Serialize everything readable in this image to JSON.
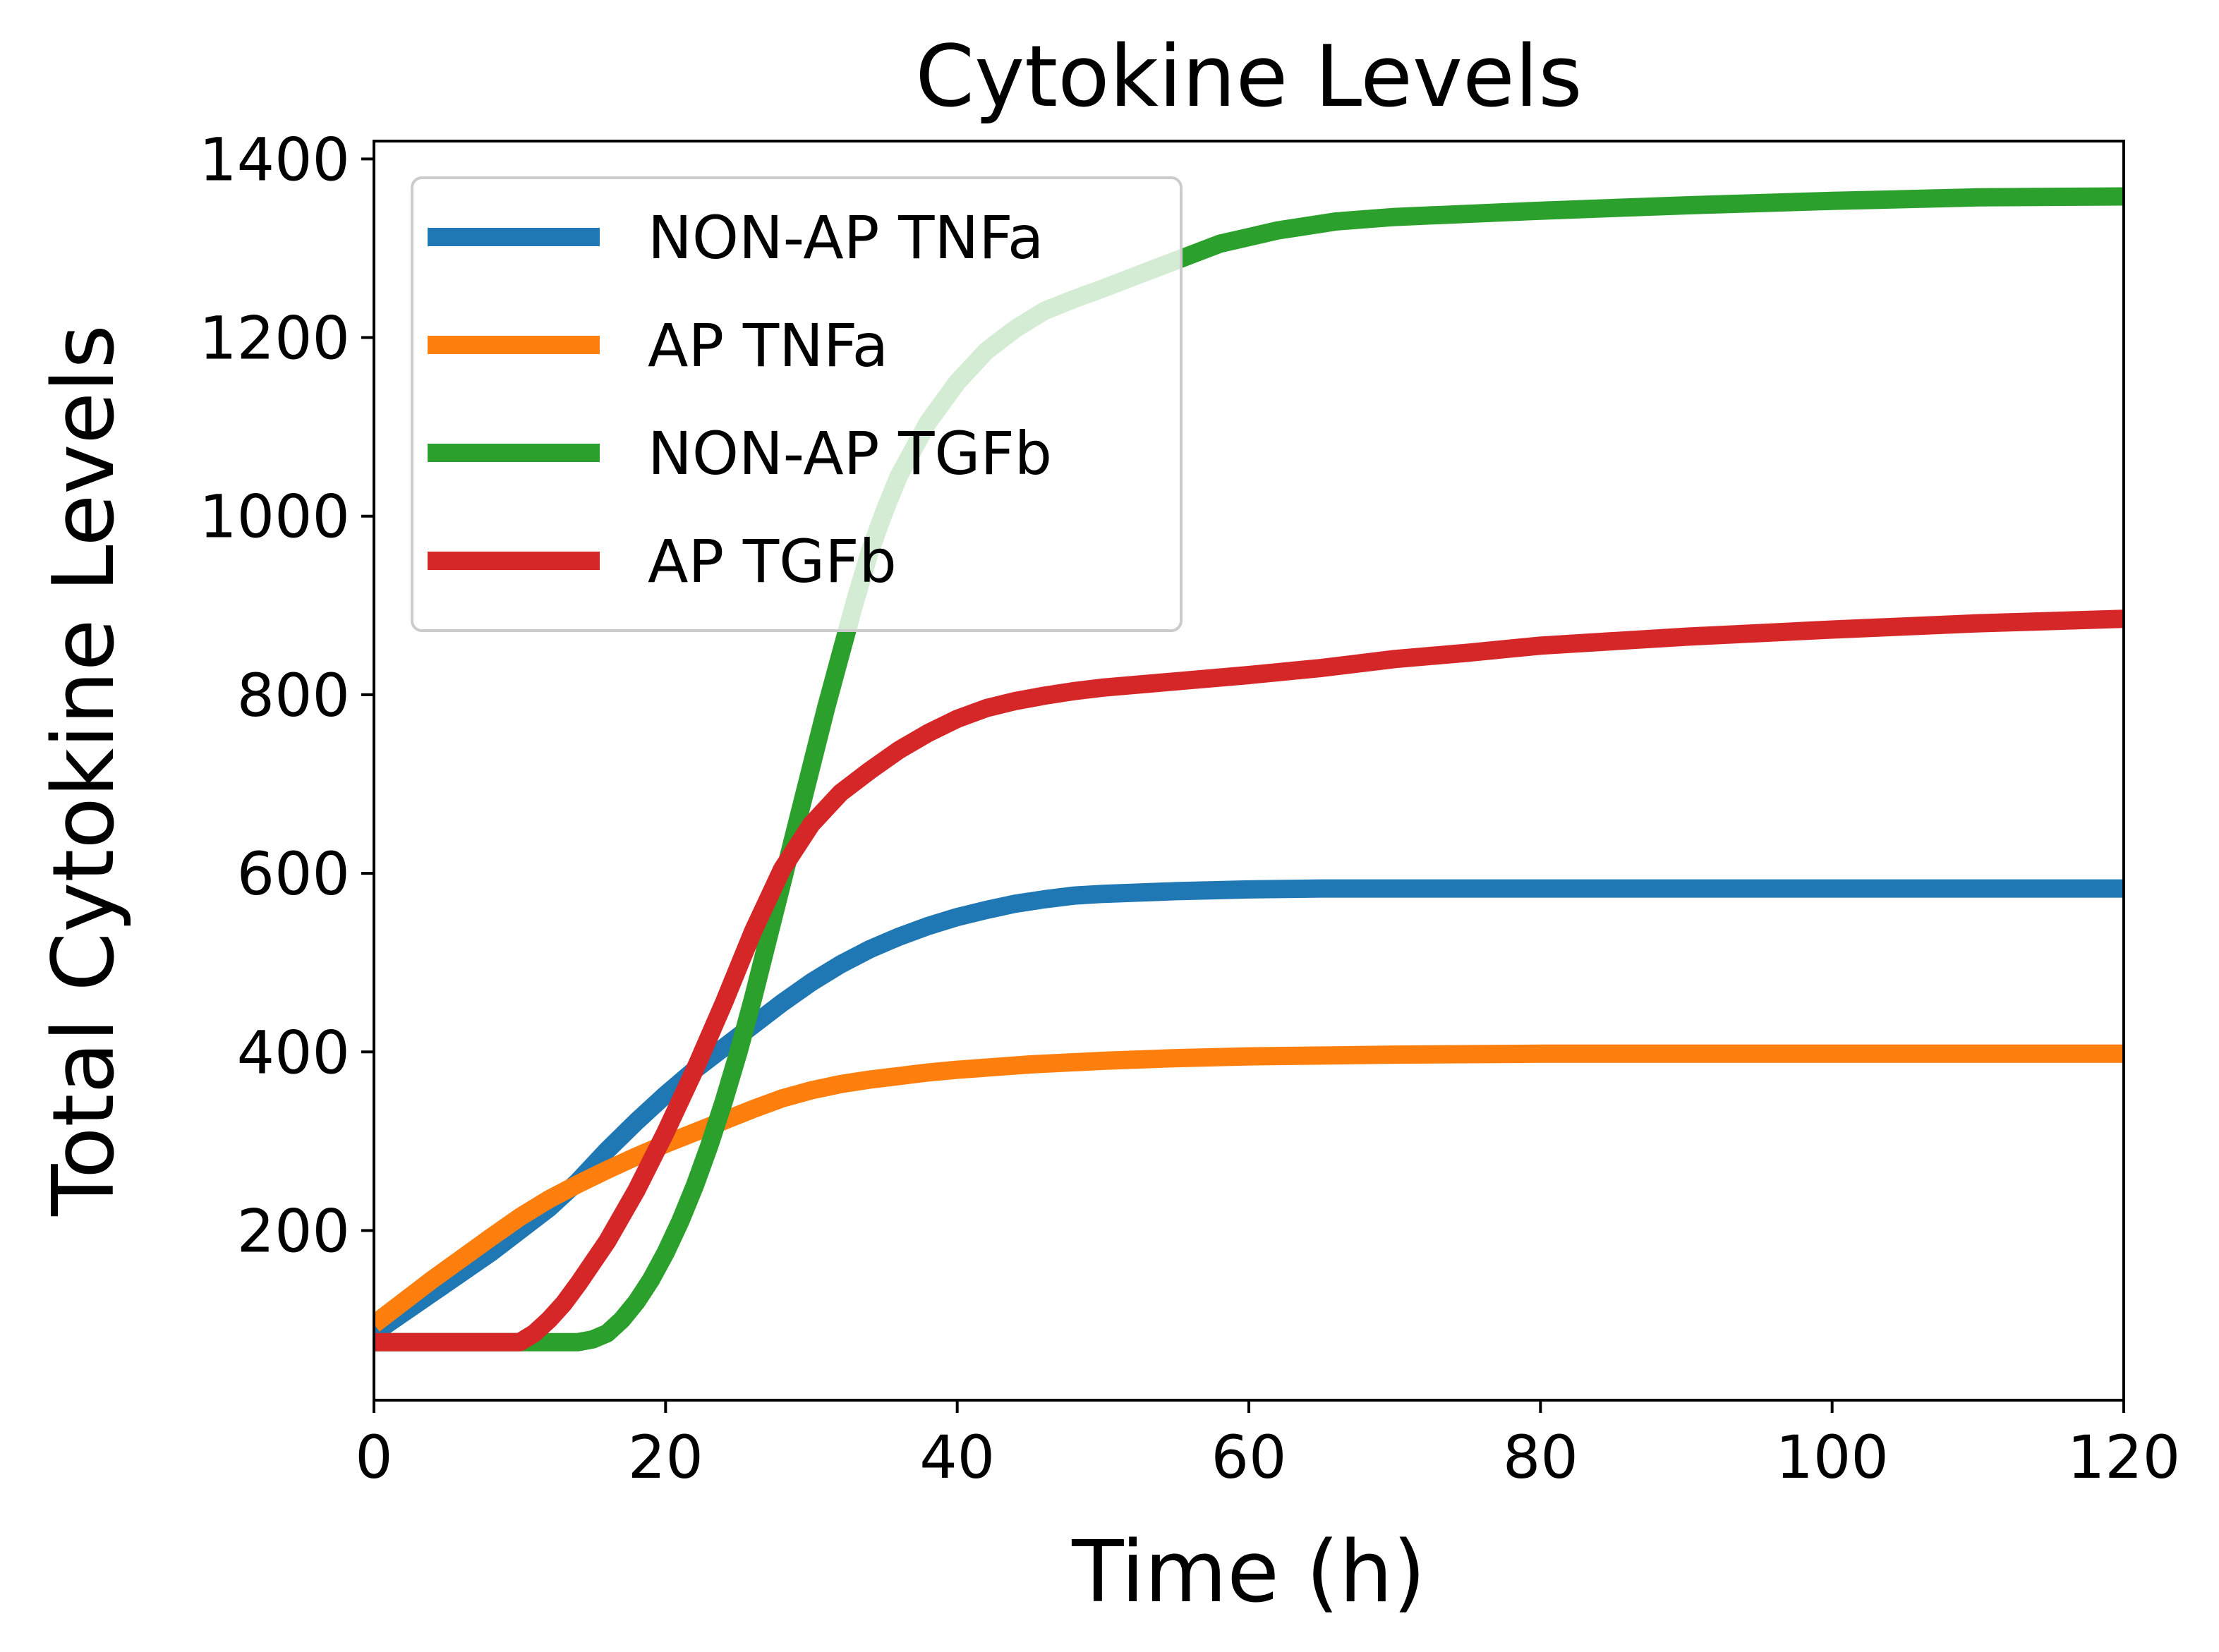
{
  "chart_data": {
    "type": "line",
    "title": "Cytokine Levels",
    "xlabel": "Time (h)",
    "ylabel": "Total Cytokine Levels",
    "xlim": [
      0,
      120
    ],
    "ylim": [
      10,
      1420
    ],
    "xticks": [
      0,
      20,
      40,
      60,
      80,
      100,
      120
    ],
    "yticks": [
      200,
      400,
      600,
      800,
      1000,
      1200,
      1400
    ],
    "grid": false,
    "legend_position": "upper left",
    "series": [
      {
        "name": "NON-AP TNFa",
        "color": "#1f77b4",
        "x": [
          0,
          4,
          8,
          12,
          14,
          16,
          18,
          20,
          22,
          24,
          26,
          28,
          30,
          32,
          34,
          36,
          38,
          40,
          42,
          44,
          46,
          48,
          50,
          55,
          60,
          65,
          70,
          80,
          90,
          100,
          110,
          120
        ],
        "y": [
          85,
          130,
          175,
          225,
          255,
          290,
          322,
          352,
          380,
          405,
          430,
          455,
          478,
          498,
          515,
          529,
          541,
          551,
          559,
          566,
          571,
          575,
          577,
          580,
          582,
          583,
          583,
          583,
          583,
          583,
          583,
          583
        ]
      },
      {
        "name": "AP TNFa",
        "color": "#ff7f0e",
        "x": [
          0,
          4,
          8,
          10,
          12,
          14,
          16,
          18,
          20,
          22,
          24,
          26,
          28,
          30,
          32,
          34,
          36,
          38,
          40,
          45,
          50,
          55,
          60,
          70,
          80,
          90,
          100,
          110,
          120
        ],
        "y": [
          95,
          145,
          192,
          215,
          235,
          252,
          268,
          283,
          297,
          310,
          323,
          336,
          348,
          357,
          364,
          369,
          373,
          377,
          380,
          386,
          390,
          393,
          395,
          397,
          398,
          398,
          398,
          398,
          398
        ]
      },
      {
        "name": "NON-AP TGFb",
        "color": "#2ca02c",
        "x": [
          0,
          10,
          12,
          14,
          15,
          16,
          17,
          18,
          19,
          20,
          21,
          22,
          23,
          24,
          25,
          26,
          27,
          28,
          29,
          30,
          31,
          32,
          33,
          34,
          35,
          36,
          38,
          40,
          42,
          44,
          46,
          48,
          50,
          54,
          58,
          62,
          66,
          70,
          80,
          90,
          100,
          110,
          120
        ],
        "y": [
          75,
          75,
          75,
          75,
          78,
          85,
          100,
          120,
          145,
          175,
          210,
          250,
          295,
          345,
          400,
          460,
          525,
          590,
          655,
          720,
          785,
          845,
          905,
          960,
          1005,
          1045,
          1105,
          1150,
          1185,
          1210,
          1230,
          1243,
          1255,
          1280,
          1305,
          1320,
          1330,
          1335,
          1342,
          1348,
          1353,
          1357,
          1358
        ]
      },
      {
        "name": "AP TGFb",
        "color": "#d62728",
        "x": [
          0,
          10,
          11,
          12,
          13,
          14,
          16,
          18,
          20,
          22,
          24,
          26,
          28,
          30,
          32,
          34,
          36,
          38,
          40,
          42,
          44,
          46,
          48,
          50,
          55,
          60,
          65,
          70,
          75,
          80,
          90,
          100,
          110,
          120
        ],
        "y": [
          75,
          75,
          85,
          100,
          118,
          140,
          188,
          245,
          310,
          380,
          455,
          535,
          605,
          655,
          690,
          715,
          738,
          757,
          773,
          785,
          793,
          799,
          804,
          808,
          815,
          822,
          830,
          840,
          847,
          855,
          865,
          873,
          880,
          885
        ]
      }
    ]
  }
}
